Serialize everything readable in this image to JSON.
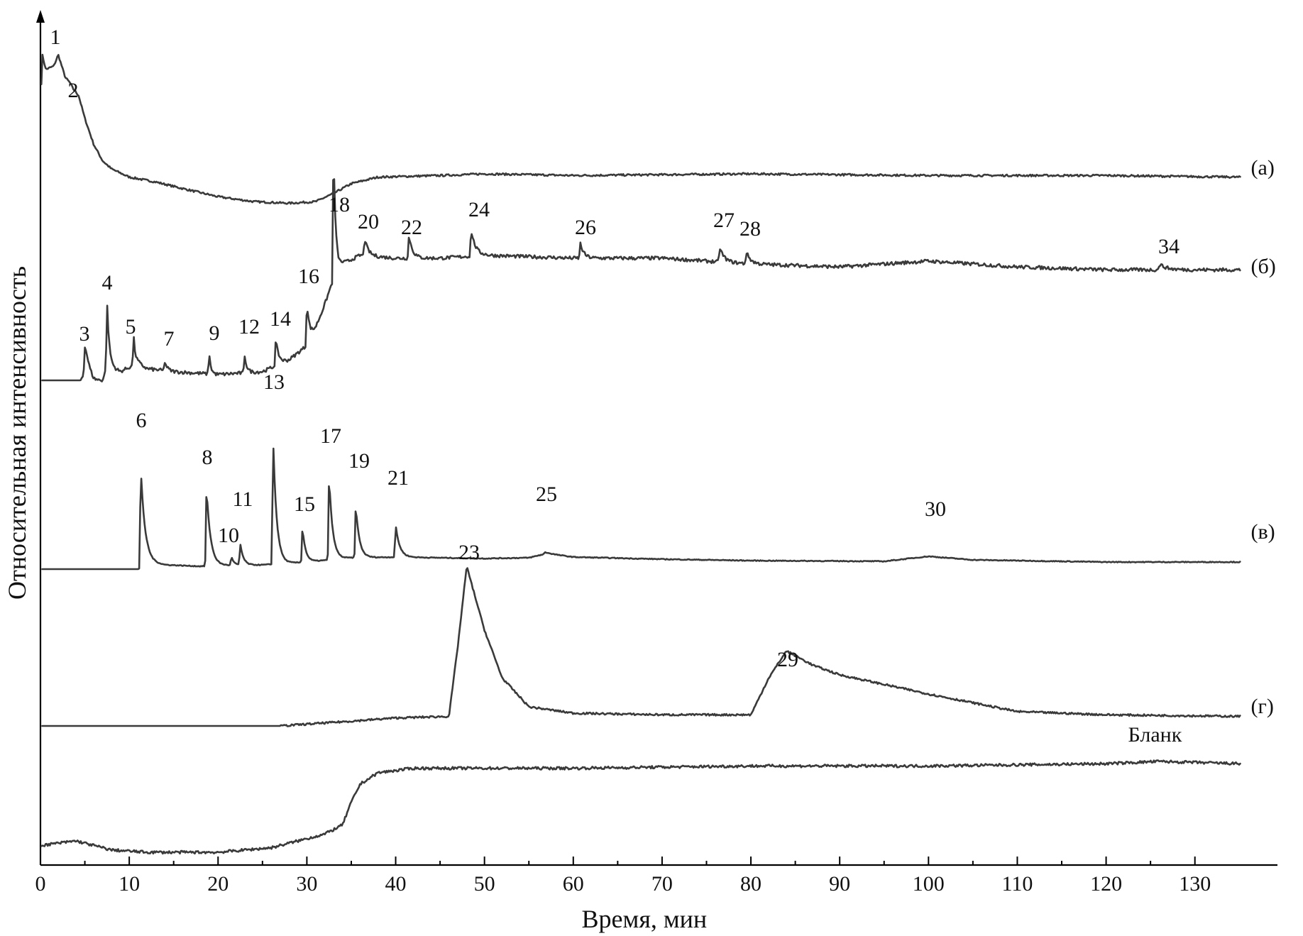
{
  "chart_data": {
    "type": "line",
    "xlabel": "Время, мин",
    "ylabel": "Относительная интенсивность",
    "xlim": [
      0,
      137
    ],
    "xticks": [
      "0",
      "10",
      "20",
      "30",
      "40",
      "50",
      "60",
      "70",
      "80",
      "90",
      "100",
      "110",
      "120",
      "130"
    ],
    "y_ticks_shown": false,
    "grid": false,
    "series": [
      {
        "name": "(а)",
        "baseline": [
          [
            0,
            0.58
          ],
          [
            0.2,
            0.93
          ],
          [
            0.6,
            0.84
          ],
          [
            1.5,
            0.86
          ],
          [
            2.0,
            0.93
          ],
          [
            2.8,
            0.79
          ],
          [
            3.3,
            0.76
          ],
          [
            3.7,
            0.72
          ],
          [
            4.3,
            0.68
          ],
          [
            5,
            0.54
          ],
          [
            6,
            0.38
          ],
          [
            7,
            0.28
          ],
          [
            8,
            0.23
          ],
          [
            10,
            0.18
          ],
          [
            13,
            0.15
          ],
          [
            16,
            0.11
          ],
          [
            20,
            0.06
          ],
          [
            24,
            0.03
          ],
          [
            28,
            0.02
          ],
          [
            31,
            0.03
          ],
          [
            33,
            0.08
          ],
          [
            35,
            0.14
          ],
          [
            38,
            0.18
          ],
          [
            45,
            0.19
          ],
          [
            50,
            0.2
          ],
          [
            60,
            0.19
          ],
          [
            80,
            0.2
          ],
          [
            100,
            0.19
          ],
          [
            120,
            0.19
          ],
          [
            135,
            0.18
          ]
        ],
        "peaks": [
          {
            "label": "1",
            "x": 2.0
          },
          {
            "label": "2",
            "x": 3.5
          }
        ]
      },
      {
        "name": "(б)",
        "baseline": [
          [
            0,
            0
          ],
          [
            4.5,
            0
          ],
          [
            5.2,
            0.04
          ],
          [
            6,
            0
          ],
          [
            7,
            0
          ],
          [
            7.5,
            0.05
          ],
          [
            9,
            0.03
          ],
          [
            11,
            0.06
          ],
          [
            12,
            0.04
          ],
          [
            15,
            0.03
          ],
          [
            20,
            0.02
          ],
          [
            25,
            0.03
          ],
          [
            28,
            0.07
          ],
          [
            30,
            0.12
          ],
          [
            31,
            0.18
          ],
          [
            32,
            0.26
          ],
          [
            33,
            0.35
          ],
          [
            34,
            0.4
          ],
          [
            36,
            0.43
          ],
          [
            40,
            0.42
          ],
          [
            45,
            0.42
          ],
          [
            50,
            0.43
          ],
          [
            60,
            0.42
          ],
          [
            70,
            0.42
          ],
          [
            80,
            0.4
          ],
          [
            90,
            0.39
          ],
          [
            100,
            0.41
          ],
          [
            110,
            0.39
          ],
          [
            120,
            0.38
          ],
          [
            135,
            0.38
          ]
        ],
        "peaks": [
          {
            "label": "3",
            "x": 5.0
          },
          {
            "label": "4",
            "x": 7.5
          },
          {
            "label": "5",
            "x": 10.5
          },
          {
            "label": "7",
            "x": 14.0
          },
          {
            "label": "9",
            "x": 19.0
          },
          {
            "label": "12",
            "x": 23.0
          },
          {
            "label": "14",
            "x": 26.5
          },
          {
            "label": "16",
            "x": 30.0
          },
          {
            "label": "18",
            "x": 33.0
          },
          {
            "label": "20",
            "x": 36.5
          },
          {
            "label": "22",
            "x": 41.5
          },
          {
            "label": "24",
            "x": 48.5
          },
          {
            "label": "26",
            "x": 60.8
          },
          {
            "label": "27",
            "x": 76.5
          },
          {
            "label": "28",
            "x": 79.5
          },
          {
            "label": "34",
            "x": 126.0
          }
        ]
      },
      {
        "name": "(в)",
        "baseline": [
          [
            0,
            0
          ],
          [
            11,
            0
          ],
          [
            12,
            0.1
          ],
          [
            14,
            0.06
          ],
          [
            18,
            0.04
          ],
          [
            20,
            0.05
          ],
          [
            25,
            0.06
          ],
          [
            30,
            0.1
          ],
          [
            35,
            0.16
          ],
          [
            40,
            0.17
          ],
          [
            50,
            0.15
          ],
          [
            55,
            0.16
          ],
          [
            57,
            0.22
          ],
          [
            60,
            0.17
          ],
          [
            70,
            0.14
          ],
          [
            80,
            0.12
          ],
          [
            95,
            0.11
          ],
          [
            100,
            0.18
          ],
          [
            105,
            0.13
          ],
          [
            120,
            0.1
          ],
          [
            135,
            0.1
          ]
        ],
        "peaks": [
          {
            "label": "6",
            "x": 11.3
          },
          {
            "label": "8",
            "x": 18.7
          },
          {
            "label": "10",
            "x": 21.5
          },
          {
            "label": "11",
            "x": 22.5
          },
          {
            "label": "13",
            "x": 26.2
          },
          {
            "label": "15",
            "x": 29.5
          },
          {
            "label": "17",
            "x": 32.5
          },
          {
            "label": "19",
            "x": 35.5
          },
          {
            "label": "21",
            "x": 40.0
          },
          {
            "label": "25",
            "x": 56.8
          },
          {
            "label": "30",
            "x": 100.0
          }
        ]
      },
      {
        "name": "(г)",
        "baseline": [
          [
            0,
            0
          ],
          [
            27,
            0
          ],
          [
            35,
            0.03
          ],
          [
            40,
            0.05
          ],
          [
            46,
            0.06
          ],
          [
            47,
            0.5
          ],
          [
            48,
            1.0
          ],
          [
            50,
            0.6
          ],
          [
            52,
            0.3
          ],
          [
            55,
            0.12
          ],
          [
            60,
            0.08
          ],
          [
            70,
            0.07
          ],
          [
            80,
            0.07
          ],
          [
            82,
            0.3
          ],
          [
            84,
            0.47
          ],
          [
            87,
            0.38
          ],
          [
            90,
            0.32
          ],
          [
            100,
            0.2
          ],
          [
            110,
            0.09
          ],
          [
            120,
            0.07
          ],
          [
            135,
            0.06
          ]
        ],
        "peaks": [
          {
            "label": "23",
            "x": 48.0
          },
          {
            "label": "29",
            "x": 83.5
          }
        ]
      },
      {
        "name": "Бланк",
        "baseline": [
          [
            0,
            0.03
          ],
          [
            2,
            0.04
          ],
          [
            4,
            0.05
          ],
          [
            6,
            0.03
          ],
          [
            8,
            0.01
          ],
          [
            12,
            0
          ],
          [
            20,
            0
          ],
          [
            26,
            0.02
          ],
          [
            30,
            0.06
          ],
          [
            32,
            0.08
          ],
          [
            34,
            0.12
          ],
          [
            35,
            0.22
          ],
          [
            36,
            0.3
          ],
          [
            38,
            0.35
          ],
          [
            42,
            0.37
          ],
          [
            60,
            0.37
          ],
          [
            80,
            0.38
          ],
          [
            100,
            0.38
          ],
          [
            120,
            0.39
          ],
          [
            126,
            0.4
          ],
          [
            135,
            0.39
          ]
        ],
        "peaks": []
      }
    ]
  }
}
